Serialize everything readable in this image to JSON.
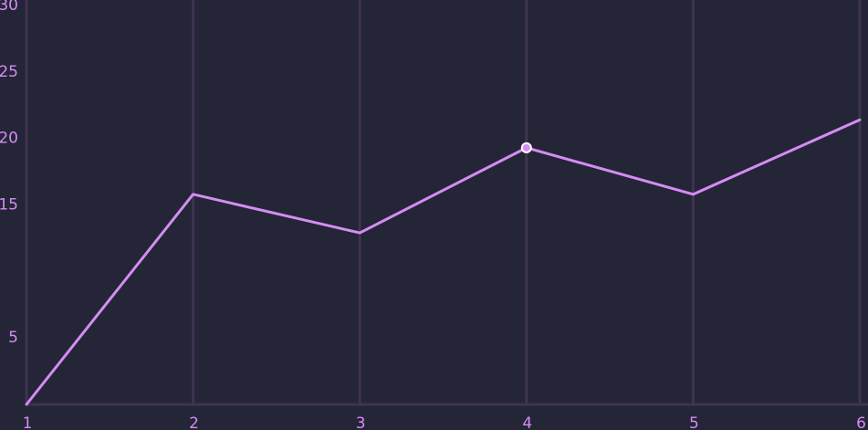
{
  "chart_data": {
    "type": "line",
    "x": [
      1,
      2,
      3,
      4,
      5,
      6
    ],
    "series": [
      {
        "values": [
          0,
          15.8,
          12.9,
          19.3,
          15.8,
          21.4
        ]
      }
    ],
    "highlighted_point": {
      "x": 4,
      "y": 19.3
    },
    "x_ticks": [
      "1",
      "2",
      "3",
      "4",
      "5",
      "6"
    ],
    "y_ticks": [
      {
        "label": "5",
        "value": 5
      },
      {
        "label": "15",
        "value": 15
      },
      {
        "label": "20",
        "value": 20
      },
      {
        "label": "25",
        "value": 25
      },
      {
        "label": "30",
        "value": 30
      }
    ],
    "xlim": [
      1,
      6
    ],
    "ylim": [
      0,
      30
    ],
    "grid": "vertical",
    "colors": {
      "background": "#242536",
      "grid": "#3e3350",
      "line": "#d58cf4",
      "tick_text": "#d58cf4",
      "marker_fill": "#d58cf4",
      "marker_stroke": "#ffffff"
    }
  }
}
